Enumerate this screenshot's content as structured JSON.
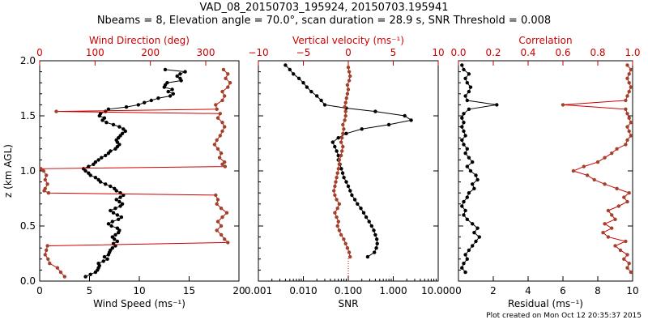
{
  "title": {
    "line1": "VAD_08_20150703_195924, 20150703.195941",
    "line2": "Nbeams = 8, Elevation angle = 70.0°, scan duration = 28.9 s, SNR Threshold = 0.008"
  },
  "footer": "Plot created on Mon Oct 12 20:35:37 2015",
  "colors": {
    "primary": "#000000",
    "secondary": "#cc0000",
    "secondary_markers": "#a0432c"
  },
  "chart_data": [
    {
      "type": "line",
      "name": "wind",
      "ylabel": "z (km AGL)",
      "ylim": [
        0.0,
        2.0
      ],
      "yticks": [
        "0.0",
        "0.5",
        "1.0",
        "1.5",
        "2.0"
      ],
      "xlabel": "Wind Speed (ms⁻¹)",
      "xlim": [
        0,
        20
      ],
      "xticks": [
        "0",
        "5",
        "10",
        "15",
        "20"
      ],
      "top_xlabel": "Wind Direction (deg)",
      "top_xlim": [
        0,
        360
      ],
      "top_xticks": [
        "0",
        "100",
        "200",
        "300"
      ],
      "series": [
        {
          "name": "Wind Speed",
          "axis": "bottom",
          "z": [
            0.04,
            0.06,
            0.08,
            0.1,
            0.12,
            0.14,
            0.16,
            0.18,
            0.2,
            0.22,
            0.24,
            0.26,
            0.28,
            0.3,
            0.32,
            0.34,
            0.36,
            0.38,
            0.4,
            0.42,
            0.44,
            0.46,
            0.48,
            0.5,
            0.52,
            0.54,
            0.56,
            0.58,
            0.6,
            0.62,
            0.64,
            0.66,
            0.68,
            0.7,
            0.72,
            0.74,
            0.76,
            0.78,
            0.8,
            0.82,
            0.84,
            0.86,
            0.88,
            0.9,
            0.92,
            0.94,
            0.96,
            0.98,
            1.0,
            1.02,
            1.04,
            1.06,
            1.08,
            1.1,
            1.12,
            1.14,
            1.16,
            1.18,
            1.2,
            1.22,
            1.24,
            1.26,
            1.28,
            1.3,
            1.32,
            1.34,
            1.36,
            1.38,
            1.4,
            1.42,
            1.44,
            1.46,
            1.48,
            1.5,
            1.52,
            1.54,
            1.56,
            1.58,
            1.6,
            1.62,
            1.64,
            1.66,
            1.68,
            1.7,
            1.72,
            1.74,
            1.76,
            1.78,
            1.8,
            1.82,
            1.84,
            1.86,
            1.88,
            1.9,
            1.92
          ],
          "values": [
            4.6,
            5.1,
            5.6,
            5.8,
            5.9,
            6.0,
            5.9,
            6.4,
            6.8,
            6.5,
            6.9,
            7.0,
            7.1,
            7.3,
            7.6,
            7.4,
            7.8,
            7.5,
            7.3,
            7.6,
            7.9,
            8.0,
            7.8,
            7.2,
            6.9,
            7.3,
            7.9,
            8.2,
            7.8,
            7.4,
            7.1,
            7.6,
            8.1,
            8.3,
            8.0,
            7.7,
            8.1,
            8.4,
            8.1,
            7.7,
            7.5,
            7.1,
            6.6,
            6.1,
            5.9,
            5.6,
            5.1,
            4.9,
            4.6,
            4.4,
            4.9,
            5.4,
            5.6,
            5.9,
            6.2,
            6.6,
            6.9,
            7.1,
            7.6,
            7.8,
            8.0,
            7.8,
            7.7,
            7.9,
            8.1,
            8.3,
            8.6,
            8.4,
            8.0,
            7.4,
            6.7,
            6.3,
            6.5,
            6.0,
            6.1,
            6.6,
            6.9,
            8.7,
            9.9,
            10.5,
            11.2,
            11.9,
            13.1,
            13.4,
            12.9,
            13.3,
            12.5,
            12.6,
            12.8,
            14.2,
            14.1,
            13.8,
            14.1,
            14.6,
            12.6
          ]
        },
        {
          "name": "Wind Direction",
          "axis": "top",
          "z": [
            0.04,
            0.08,
            0.12,
            0.16,
            0.2,
            0.24,
            0.28,
            0.32,
            0.35,
            0.38,
            0.42,
            0.46,
            0.5,
            0.54,
            0.58,
            0.62,
            0.66,
            0.7,
            0.74,
            0.78,
            0.8,
            0.82,
            0.84,
            0.88,
            0.92,
            0.96,
            1.0,
            1.02,
            1.04,
            1.06,
            1.08,
            1.12,
            1.16,
            1.2,
            1.24,
            1.28,
            1.32,
            1.36,
            1.4,
            1.44,
            1.48,
            1.52,
            1.54,
            1.56,
            1.6,
            1.64,
            1.68,
            1.72,
            1.76,
            1.8,
            1.84,
            1.88,
            1.92
          ],
          "values": [
            45,
            38,
            32,
            18,
            15,
            10,
            12,
            14,
            340,
            334,
            328,
            320,
            328,
            322,
            330,
            338,
            328,
            320,
            322,
            318,
            16,
            8,
            10,
            14,
            10,
            12,
            7,
            2,
            335,
            330,
            334,
            325,
            328,
            322,
            316,
            320,
            326,
            330,
            334,
            330,
            322,
            326,
            30,
            320,
            318,
            330,
            334,
            330,
            340,
            344,
            336,
            340,
            332
          ]
        }
      ]
    },
    {
      "type": "line",
      "name": "vertical",
      "xlabel": "SNR",
      "xscale": "log",
      "xlim": [
        0.001,
        10.0
      ],
      "xticks": [
        "0.001",
        "0.010",
        "0.100",
        "1.000",
        "10.000"
      ],
      "top_xlabel": "Vertical velocity (ms⁻¹)",
      "top_xlim": [
        -10,
        10
      ],
      "top_xticks": [
        "−10",
        "−5",
        "0",
        "5",
        "10"
      ],
      "ylim": [
        0.0,
        2.0
      ],
      "series": [
        {
          "name": "SNR",
          "axis": "bottom",
          "z": [
            0.22,
            0.26,
            0.3,
            0.34,
            0.38,
            0.42,
            0.46,
            0.5,
            0.54,
            0.58,
            0.62,
            0.66,
            0.7,
            0.74,
            0.78,
            0.82,
            0.86,
            0.9,
            0.94,
            0.98,
            1.02,
            1.06,
            1.1,
            1.14,
            1.18,
            1.22,
            1.26,
            1.3,
            1.34,
            1.38,
            1.42,
            1.46,
            1.5,
            1.54,
            1.57,
            1.6,
            1.64,
            1.68,
            1.72,
            1.76,
            1.8,
            1.84,
            1.88,
            1.92,
            1.96
          ],
          "values": [
            0.27,
            0.38,
            0.42,
            0.44,
            0.43,
            0.4,
            0.37,
            0.33,
            0.29,
            0.25,
            0.22,
            0.19,
            0.16,
            0.14,
            0.12,
            0.11,
            0.1,
            0.09,
            0.08,
            0.075,
            0.07,
            0.065,
            0.06,
            0.06,
            0.055,
            0.05,
            0.045,
            0.06,
            0.09,
            0.2,
            0.8,
            2.5,
            1.8,
            0.4,
            0.09,
            0.03,
            0.025,
            0.02,
            0.015,
            0.012,
            0.01,
            0.008,
            0.006,
            0.005,
            0.004
          ]
        },
        {
          "name": "Vertical velocity",
          "axis": "top",
          "z": [
            0.22,
            0.26,
            0.3,
            0.34,
            0.38,
            0.42,
            0.46,
            0.5,
            0.54,
            0.58,
            0.62,
            0.66,
            0.7,
            0.74,
            0.78,
            0.82,
            0.86,
            0.9,
            0.94,
            0.98,
            1.02,
            1.06,
            1.1,
            1.14,
            1.18,
            1.22,
            1.26,
            1.3,
            1.34,
            1.38,
            1.42,
            1.46,
            1.5,
            1.54,
            1.58,
            1.62,
            1.66,
            1.7,
            1.74,
            1.78,
            1.82,
            1.86,
            1.9,
            1.94
          ],
          "values": [
            0.2,
            0.1,
            -0.1,
            -0.3,
            -0.5,
            -0.8,
            -1.0,
            -1.2,
            -1.1,
            -1.3,
            -1.5,
            -1.2,
            -1.0,
            -1.3,
            -1.5,
            -1.6,
            -1.5,
            -1.4,
            -1.3,
            -1.2,
            -1.1,
            -1.0,
            -1.0,
            -0.8,
            -0.7,
            -0.6,
            -0.8,
            -0.7,
            -0.6,
            -0.5,
            -0.6,
            -0.4,
            -0.3,
            -0.3,
            -0.4,
            -0.3,
            -0.2,
            -0.1,
            0.0,
            -0.1,
            0.1,
            0.2,
            0.1,
            0.0
          ]
        }
      ]
    },
    {
      "type": "line",
      "name": "residual",
      "xlabel": "Residual (ms⁻¹)",
      "xlim": [
        0,
        10
      ],
      "xticks": [
        "0",
        "2",
        "4",
        "6",
        "8",
        "10"
      ],
      "top_xlabel": "Correlation",
      "top_xlim": [
        0.0,
        1.0
      ],
      "top_xticks": [
        "0.0",
        "0.2",
        "0.4",
        "0.6",
        "0.8",
        "1.0"
      ],
      "ylim": [
        0.0,
        2.0
      ],
      "series": [
        {
          "name": "Residual",
          "axis": "bottom",
          "z": [
            0.08,
            0.12,
            0.16,
            0.2,
            0.24,
            0.28,
            0.32,
            0.36,
            0.4,
            0.44,
            0.48,
            0.52,
            0.56,
            0.6,
            0.64,
            0.68,
            0.72,
            0.76,
            0.8,
            0.84,
            0.88,
            0.92,
            0.96,
            1.0,
            1.04,
            1.08,
            1.12,
            1.16,
            1.2,
            1.24,
            1.28,
            1.32,
            1.36,
            1.4,
            1.44,
            1.48,
            1.52,
            1.56,
            1.6,
            1.64,
            1.68,
            1.72,
            1.76,
            1.8,
            1.84,
            1.88,
            1.92,
            1.96
          ],
          "values": [
            0.4,
            0.2,
            0.3,
            0.5,
            0.4,
            0.6,
            0.8,
            1.0,
            1.2,
            0.9,
            1.1,
            0.8,
            0.5,
            0.3,
            0.4,
            0.2,
            0.3,
            0.5,
            0.6,
            0.9,
            0.8,
            1.1,
            1.0,
            0.7,
            0.5,
            0.8,
            0.6,
            0.4,
            0.5,
            0.3,
            0.2,
            0.4,
            0.3,
            0.2,
            0.3,
            0.2,
            0.3,
            0.6,
            2.2,
            0.5,
            0.4,
            0.6,
            0.7,
            0.5,
            0.4,
            0.6,
            0.3,
            0.2
          ]
        },
        {
          "name": "Correlation",
          "axis": "top",
          "z": [
            0.08,
            0.12,
            0.16,
            0.2,
            0.24,
            0.28,
            0.32,
            0.36,
            0.4,
            0.44,
            0.48,
            0.52,
            0.56,
            0.6,
            0.64,
            0.68,
            0.72,
            0.76,
            0.8,
            0.84,
            0.88,
            0.92,
            0.96,
            1.0,
            1.04,
            1.08,
            1.12,
            1.16,
            1.2,
            1.24,
            1.28,
            1.32,
            1.36,
            1.4,
            1.44,
            1.48,
            1.52,
            1.56,
            1.6,
            1.64,
            1.68,
            1.72,
            1.76,
            1.8,
            1.84,
            1.88,
            1.92,
            1.96
          ],
          "values": [
            0.99,
            0.97,
            0.98,
            0.95,
            0.97,
            0.93,
            0.9,
            0.96,
            0.86,
            0.83,
            0.88,
            0.84,
            0.9,
            0.88,
            0.86,
            0.92,
            0.97,
            0.95,
            0.98,
            0.91,
            0.84,
            0.78,
            0.74,
            0.66,
            0.72,
            0.8,
            0.84,
            0.88,
            0.91,
            0.96,
            0.97,
            0.99,
            0.98,
            0.97,
            0.99,
            0.98,
            0.97,
            0.96,
            0.6,
            0.96,
            0.97,
            0.98,
            0.99,
            0.98,
            0.97,
            0.98,
            0.99,
            0.97
          ]
        }
      ]
    }
  ]
}
